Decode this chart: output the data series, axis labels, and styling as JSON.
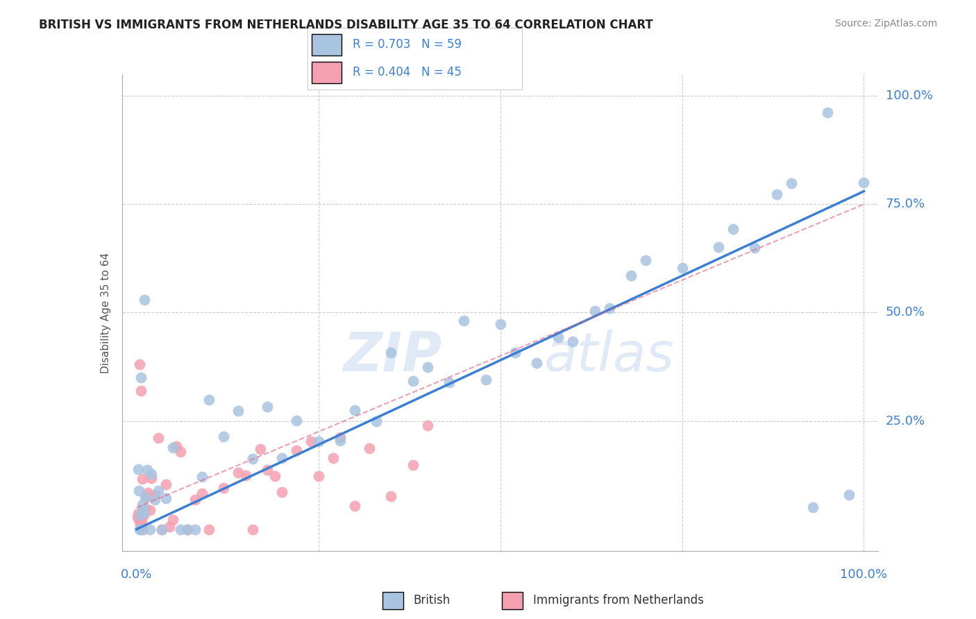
{
  "title": "BRITISH VS IMMIGRANTS FROM NETHERLANDS DISABILITY AGE 35 TO 64 CORRELATION CHART",
  "source": "Source: ZipAtlas.com",
  "ylabel": "Disability Age 35 to 64",
  "legend_label1": "British",
  "legend_label2": "Immigrants from Netherlands",
  "R1": "0.703",
  "N1": "59",
  "R2": "0.404",
  "N2": "45",
  "color_british": "#a8c4e0",
  "color_netherlands": "#f4a0b0",
  "color_line1": "#3a7fd5",
  "color_line2": "#e06080",
  "color_axis_label": "#3a7fd5",
  "color_grid": "#cccccc",
  "color_watermark": "#c8d8f0",
  "watermark_zip": "ZIP",
  "watermark_atlas": "atlas",
  "ytick_labels": [
    "25.0%",
    "50.0%",
    "75.0%",
    "100.0%"
  ],
  "ytick_positions": [
    25,
    50,
    75,
    100
  ],
  "xtick_left": "0.0%",
  "xtick_right": "100.0%"
}
